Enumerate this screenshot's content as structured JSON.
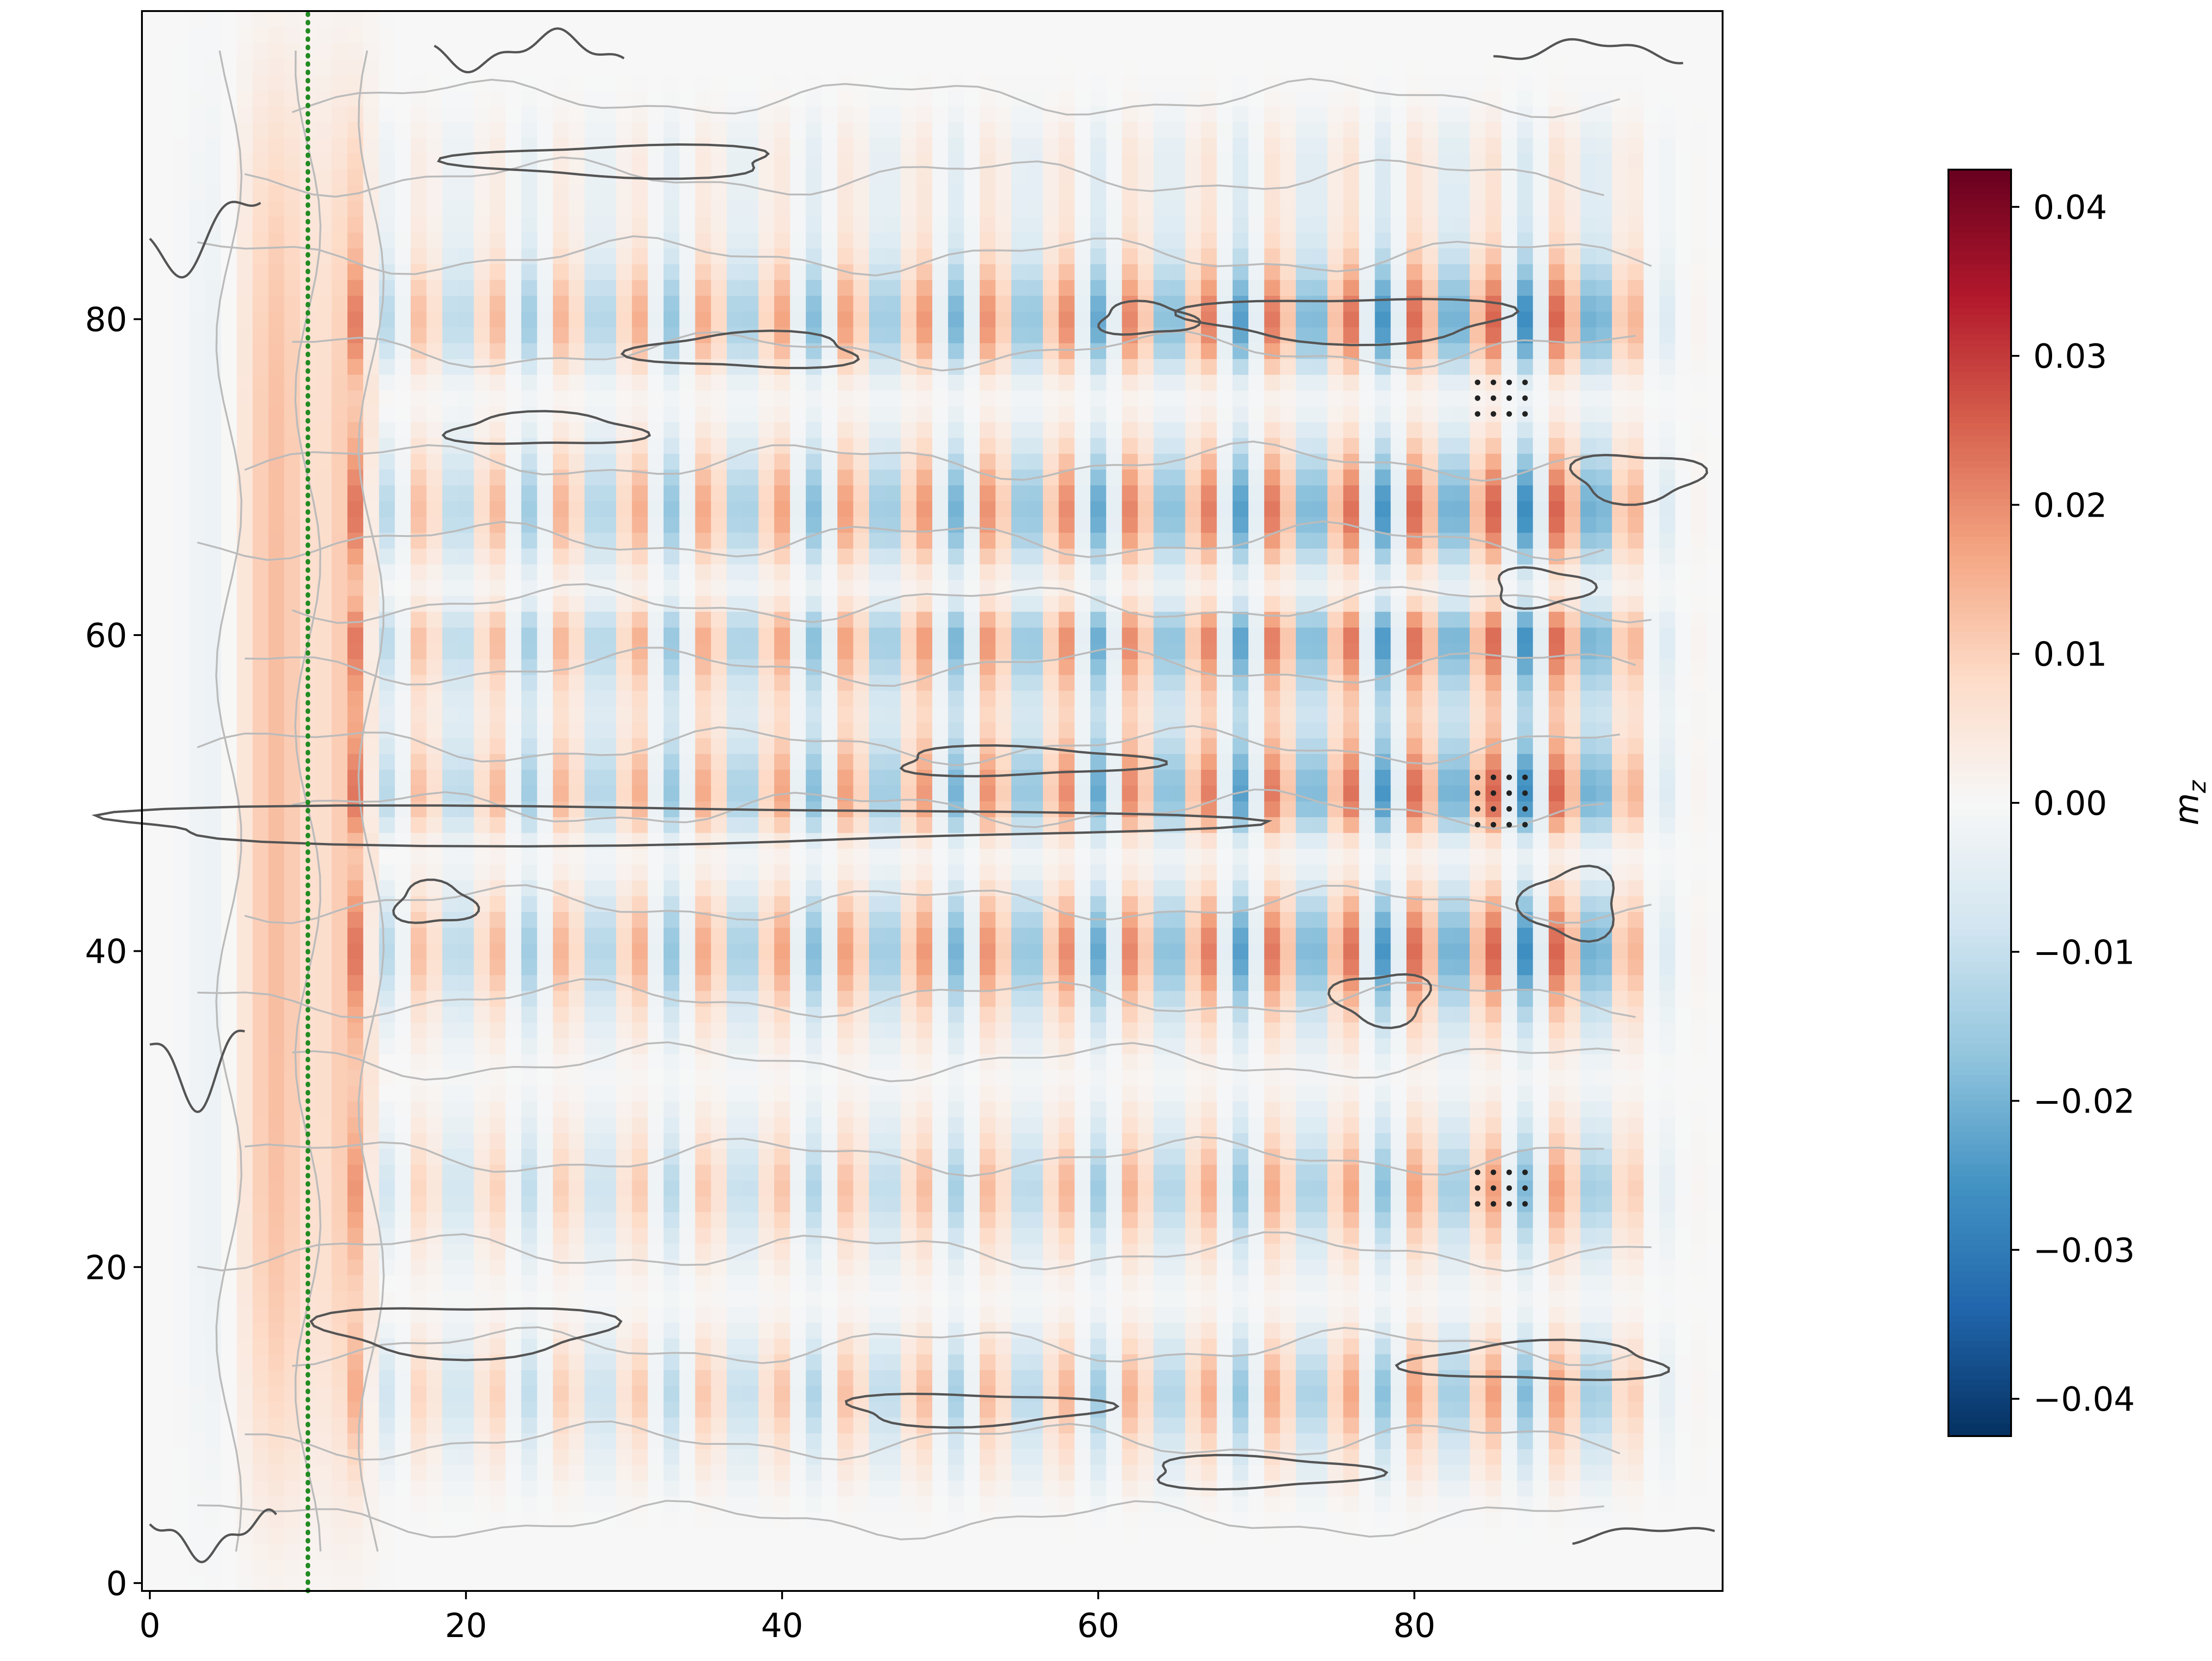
{
  "chart_data": {
    "type": "heatmap",
    "title": "",
    "xlabel": "",
    "ylabel": "",
    "colorbar": {
      "label": "m_z",
      "label_display": "m",
      "label_subscript": "z",
      "colormap": "RdBu_r",
      "vmin": -0.0425,
      "vmax": 0.0425,
      "ticks": [
        0.04,
        0.03,
        0.02,
        0.01,
        0.0,
        -0.01,
        -0.02,
        -0.03,
        -0.04
      ],
      "tick_labels": [
        "0.04",
        "0.03",
        "0.02",
        "0.01",
        "0.00",
        "−0.01",
        "−0.02",
        "−0.03",
        "−0.04"
      ]
    },
    "xlim": [
      -0.5,
      99.5
    ],
    "ylim": [
      -0.5,
      99.5
    ],
    "x_ticks": [
      0,
      20,
      40,
      60,
      80
    ],
    "y_ticks": [
      0,
      20,
      40,
      60,
      80
    ],
    "x_tick_labels": [
      "0",
      "20",
      "40",
      "60",
      "80"
    ],
    "y_tick_labels": [
      "0",
      "20",
      "40",
      "60",
      "80"
    ],
    "grid": false,
    "grid_shape": [
      100,
      100
    ],
    "field_description": "standing-wave pattern of m_z, alternating red/blue stripes along x with horizontal bands along y",
    "stripe_period_x": 4.5,
    "stripe_start_x": 14,
    "strong_band_y": [
      40,
      50,
      60,
      68,
      80
    ],
    "weak_band_y": [
      12,
      25
    ],
    "gap_y": [
      18,
      32,
      46,
      63,
      75
    ],
    "reference_line": {
      "x": 10,
      "style": "dotted",
      "color": "#228B22"
    },
    "marked_regions": [
      {
        "x": [
          83.5,
          87.5
        ],
        "y": [
          23.5,
          26.5
        ]
      },
      {
        "x": [
          83.5,
          87.5
        ],
        "y": [
          47.5,
          51.5
        ]
      },
      {
        "x": [
          83.5,
          87.5
        ],
        "y": [
          73.5,
          76.5
        ]
      }
    ],
    "contour_colors": {
      "dark": "#555555",
      "light": "#bbbbbb"
    }
  }
}
